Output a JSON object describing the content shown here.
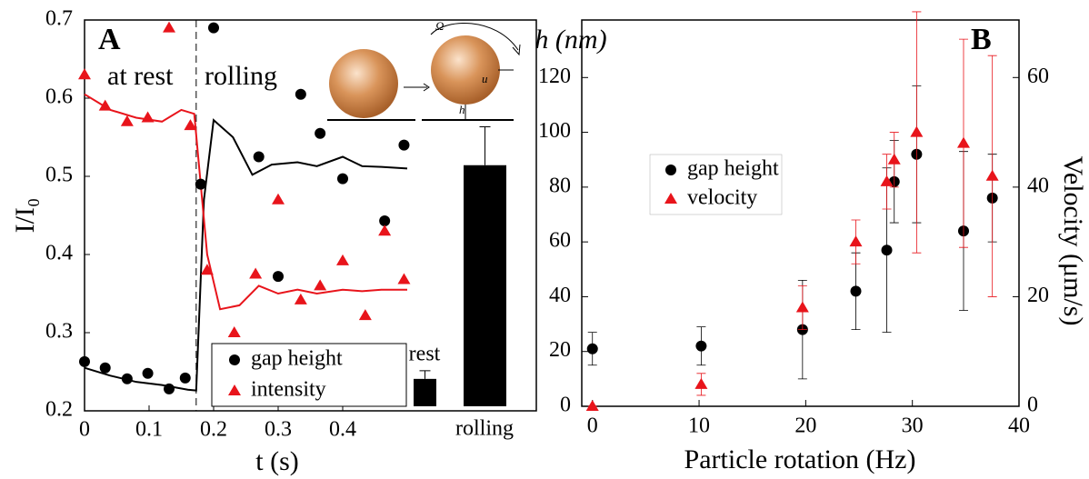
{
  "chart_data": [
    {
      "type": "scatter",
      "panel_label": "A",
      "x_label": "t (s)",
      "y_label": "I/I₀",
      "xlim": [
        0,
        0.7
      ],
      "ylim": [
        0.2,
        0.7
      ],
      "xticks": [
        0,
        0.1,
        0.2,
        0.3,
        0.4
      ],
      "yticks": [
        0.2,
        0.3,
        0.4,
        0.5,
        0.6,
        0.7
      ],
      "annotations": [
        "at rest",
        "rolling",
        "Ω",
        "u",
        "h"
      ],
      "rest_end": 0.173,
      "series": [
        {
          "name": "gap height",
          "color": "#000000",
          "marker": "circle",
          "x": [
            0,
            0.032,
            0.066,
            0.098,
            0.131,
            0.156,
            0.18,
            0.2,
            0.27,
            0.3,
            0.335,
            0.365,
            0.4,
            0.465,
            0.495
          ],
          "values": [
            0.263,
            0.255,
            0.241,
            0.248,
            0.228,
            0.242,
            0.49,
            0.69,
            0.525,
            0.372,
            0.605,
            0.555,
            0.497,
            0.443,
            0.54
          ]
        },
        {
          "name": "intensity",
          "color": "#e8141b",
          "marker": "triangle",
          "x": [
            0,
            0.032,
            0.066,
            0.098,
            0.131,
            0.164,
            0.19,
            0.232,
            0.265,
            0.3,
            0.335,
            0.365,
            0.4,
            0.435,
            0.465,
            0.495
          ],
          "values": [
            0.63,
            0.59,
            0.57,
            0.575,
            0.69,
            0.565,
            0.38,
            0.3,
            0.375,
            0.47,
            0.342,
            0.36,
            0.392,
            0.322,
            0.43,
            0.368
          ]
        }
      ],
      "lines": [
        {
          "color": "#000000",
          "x": [
            0,
            0.04,
            0.08,
            0.12,
            0.16,
            0.173,
            0.185,
            0.2,
            0.23,
            0.26,
            0.29,
            0.33,
            0.36,
            0.4,
            0.43,
            0.46,
            0.5
          ],
          "values": [
            0.255,
            0.245,
            0.237,
            0.233,
            0.227,
            0.226,
            0.47,
            0.572,
            0.55,
            0.502,
            0.515,
            0.518,
            0.513,
            0.525,
            0.513,
            0.512,
            0.51
          ]
        },
        {
          "color": "#e8141b",
          "x": [
            0,
            0.04,
            0.08,
            0.12,
            0.15,
            0.17,
            0.19,
            0.21,
            0.24,
            0.27,
            0.3,
            0.33,
            0.36,
            0.4,
            0.43,
            0.46,
            0.5
          ],
          "values": [
            0.605,
            0.585,
            0.575,
            0.57,
            0.585,
            0.58,
            0.4,
            0.33,
            0.335,
            0.36,
            0.35,
            0.355,
            0.35,
            0.355,
            0.353,
            0.355,
            0.355
          ]
        }
      ]
    },
    {
      "type": "bar",
      "categories": [
        "rest",
        "rolling"
      ],
      "values": [
        10,
        88
      ],
      "errors": [
        3,
        14
      ],
      "color": "#000000"
    },
    {
      "type": "scatter",
      "panel_label": "B",
      "x_label": "Particle rotation (Hz)",
      "y_label": "h (nm)",
      "y2_label": "Velocity (μm/s)",
      "xlim": [
        -1,
        40
      ],
      "ylim": [
        0,
        141
      ],
      "y2lim": [
        0,
        70.5
      ],
      "xticks": [
        0,
        10,
        20,
        30,
        40
      ],
      "yticks": [
        0,
        20,
        40,
        60,
        80,
        100,
        120
      ],
      "y2ticks": [
        0,
        20,
        40,
        60
      ],
      "series": [
        {
          "name": "gap height",
          "color": "#000000",
          "marker": "circle",
          "x": [
            0,
            10.2,
            19.7,
            24.7,
            27.6,
            28.3,
            30.4,
            34.8,
            37.5
          ],
          "values": [
            21,
            22,
            28,
            42,
            57,
            82,
            92,
            64,
            76
          ],
          "errors": [
            6,
            7,
            18,
            14,
            30,
            15,
            25,
            29,
            16
          ]
        },
        {
          "name": "velocity",
          "color": "#e8141b",
          "marker": "triangle",
          "axis": "y2",
          "x": [
            0,
            10.2,
            19.7,
            24.7,
            27.6,
            28.3,
            30.4,
            34.8,
            37.5
          ],
          "values": [
            0,
            4,
            18,
            30,
            41,
            45,
            50,
            48,
            42
          ],
          "errors": [
            0,
            2,
            4,
            4,
            5,
            5,
            22,
            19,
            22
          ]
        }
      ]
    }
  ]
}
